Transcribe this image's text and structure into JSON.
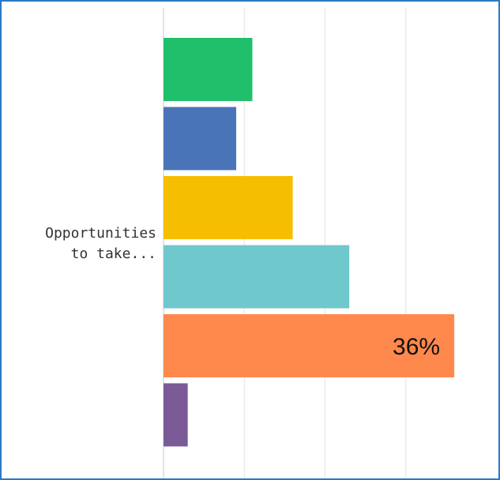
{
  "chart_data": {
    "type": "bar",
    "orientation": "horizontal",
    "categories": [
      "Opportunities\nto take..."
    ],
    "series": [
      {
        "values": [
          11
        ],
        "color": "#20bf6b"
      },
      {
        "values": [
          9
        ],
        "color": "#4a74b8"
      },
      {
        "values": [
          16
        ],
        "color": "#f5be00"
      },
      {
        "values": [
          23
        ],
        "color": "#6fc8cc"
      },
      {
        "values": [
          36
        ],
        "color": "#ff884d"
      },
      {
        "values": [
          3
        ],
        "color": "#7a5a97"
      }
    ],
    "data_labels": [
      {
        "series_index": 4,
        "text": "36%"
      }
    ],
    "xlim": [
      0,
      40
    ],
    "grid": true,
    "legend": "none"
  }
}
